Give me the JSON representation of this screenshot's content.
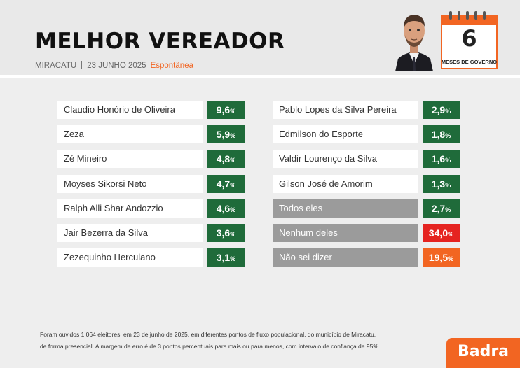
{
  "header": {
    "title": "MELHOR VEREADOR",
    "city": "MIRACATU",
    "date": "23 JUNHO 2025",
    "type": "Espontânea"
  },
  "calendar": {
    "number": "6",
    "label": "MESES DE GOVERNO"
  },
  "chart_data": {
    "type": "table",
    "left_column": [
      {
        "name": "Claudio Honório de Oliveira",
        "value": "9,6",
        "pct": "%"
      },
      {
        "name": "Zeza",
        "value": "5,9",
        "pct": "%"
      },
      {
        "name": "Zé Mineiro",
        "value": "4,8",
        "pct": "%"
      },
      {
        "name": "Moyses Sikorsi Neto",
        "value": "4,7",
        "pct": "%"
      },
      {
        "name": "Ralph Alli Shar Andozzio",
        "value": "4,6",
        "pct": "%"
      },
      {
        "name": "Jair Bezerra da Silva",
        "value": "3,6",
        "pct": "%"
      },
      {
        "name": "Zezequinho Herculano",
        "value": "3,1",
        "pct": "%"
      }
    ],
    "right_column": [
      {
        "name": "Pablo Lopes da Silva Pereira",
        "value": "2,9",
        "pct": "%"
      },
      {
        "name": "Edmilson do Esporte",
        "value": "1,8",
        "pct": "%"
      },
      {
        "name": "Valdir Lourenço da Silva",
        "value": "1,6",
        "pct": "%"
      },
      {
        "name": "Gilson José de Amorim",
        "value": "1,3",
        "pct": "%"
      },
      {
        "name": "Todos eles",
        "value": "2,7",
        "pct": "%"
      },
      {
        "name": "Nenhum deles",
        "value": "34,0",
        "pct": "%"
      },
      {
        "name": "Não sei dizer",
        "value": "19,5",
        "pct": "%"
      }
    ]
  },
  "colors": {
    "accent": "#f26522",
    "green": "#1f6b3a",
    "red": "#e52421",
    "orange": "#f26522",
    "gray": "#9b9b9b"
  },
  "footnote": {
    "line1": "Foram ouvidos 1.064 eleitores, em 23 de junho de 2025, em diferentes pontos de fluxo populacional, do município de Miracatu,",
    "line2": "de forma presencial. A margem de erro é de 3 pontos percentuais para mais ou para menos, com intervalo de confiança de 95%."
  },
  "brand": "Badra"
}
